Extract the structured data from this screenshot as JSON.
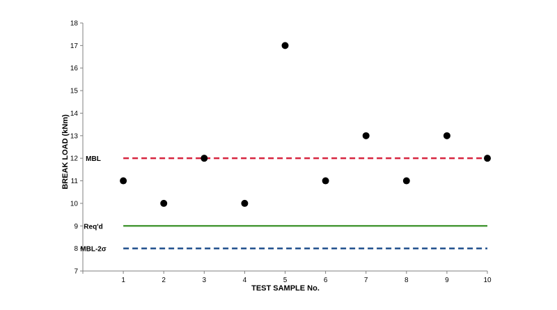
{
  "chart_data": {
    "type": "scatter",
    "title": "",
    "xlabel": "TEST SAMPLE No.",
    "ylabel": "BREAK LOAD (kNm)",
    "x": [
      1,
      2,
      3,
      4,
      5,
      6,
      7,
      8,
      9,
      10
    ],
    "y": [
      11,
      10,
      12,
      10,
      17,
      11,
      13,
      11,
      13,
      12
    ],
    "xlim": [
      0,
      10
    ],
    "ylim": [
      7,
      18
    ],
    "xticks": [
      "1",
      "2",
      "3",
      "4",
      "5",
      "6",
      "7",
      "8",
      "9",
      "10"
    ],
    "yticks": [
      "7",
      "8",
      "9",
      "10",
      "11",
      "12",
      "13",
      "14",
      "15",
      "16",
      "17",
      "18"
    ],
    "grid": false,
    "marker_color": "#000000",
    "reference_lines": [
      {
        "label": "MBL",
        "value": 12,
        "color": "#d6243f",
        "style": "dashed"
      },
      {
        "label": "Req'd",
        "value": 9,
        "color": "#4a9a3a",
        "style": "solid"
      },
      {
        "label": "MBL-2σ",
        "value": 8,
        "color": "#1f4e8c",
        "style": "dashed"
      }
    ]
  }
}
